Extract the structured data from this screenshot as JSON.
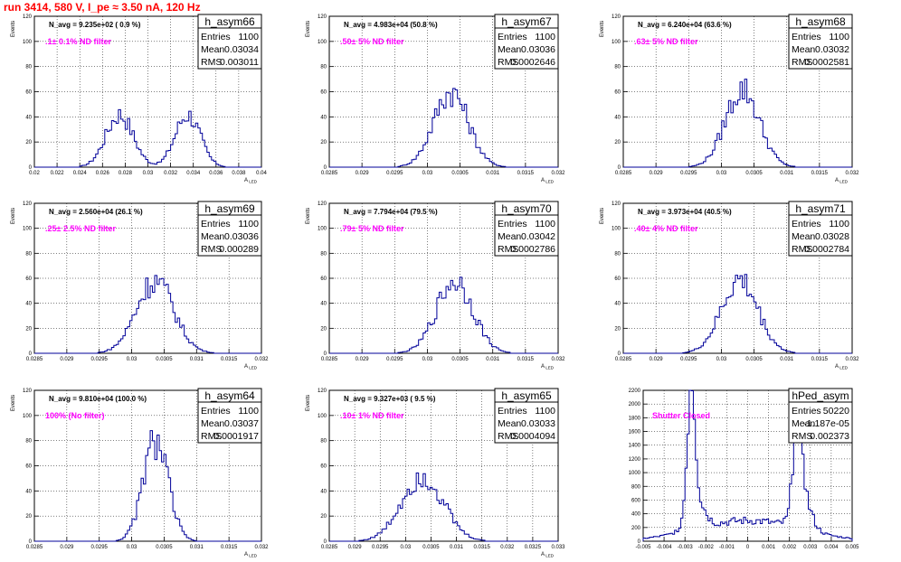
{
  "page_title": "run 3414,   580 V, I_pe ≈ 3.50 nA, 120 Hz",
  "colors": {
    "title": "#ff0000",
    "histogram": "#000099",
    "filter_label": "#ff00ff"
  },
  "chart_data": [
    {
      "type": "histogram",
      "name": "h_asym66",
      "stats": {
        "Entries": "1100",
        "Mean": "0.03034",
        "RMS": "0.003011"
      },
      "n_avg": "N_avg = 9.235e+02 ( 0.9 %)",
      "filter": ".1± 0.1% ND filter",
      "ylabel": "Events",
      "xlabel": "A_LED",
      "xlim": [
        0.02,
        0.04
      ],
      "ylim": [
        0,
        120
      ],
      "grid": true,
      "x_ticks": [
        "0.02",
        "0.022",
        "0.024",
        "0.026",
        "0.028",
        "0.03",
        "0.032",
        "0.034",
        "0.036",
        "0.038",
        "0.04"
      ],
      "y_ticks": [
        "0",
        "20",
        "40",
        "60",
        "80",
        "100",
        "120"
      ],
      "peaks": [
        [
          0.0275,
          0.0012,
          42
        ],
        [
          0.0335,
          0.0011,
          42
        ]
      ]
    },
    {
      "type": "histogram",
      "name": "h_asym67",
      "stats": {
        "Entries": "1100",
        "Mean": "0.03036",
        "RMS": "0.0002646"
      },
      "n_avg": "N_avg = 4.983e+04 (50.8 %)",
      "filter": ".50± 5% ND filter",
      "ylabel": "Events",
      "xlabel": "A_LED",
      "xlim": [
        0.0285,
        0.032
      ],
      "ylim": [
        0,
        120
      ],
      "grid": true,
      "x_ticks": [
        "0.0285",
        "0.029",
        "0.0295",
        "0.03",
        "0.0305",
        "0.031",
        "0.0315",
        "0.032"
      ],
      "y_ticks": [
        "0",
        "20",
        "40",
        "60",
        "80",
        "100",
        "120"
      ],
      "peaks": [
        [
          0.03036,
          0.000265,
          60
        ]
      ]
    },
    {
      "type": "histogram",
      "name": "h_asym68",
      "stats": {
        "Entries": "1100",
        "Mean": "0.03032",
        "RMS": "0.0002581"
      },
      "n_avg": "N_avg = 6.240e+04 (63.6 %)",
      "filter": ".63± 5% ND filter",
      "ylabel": "Events",
      "xlabel": "A_LED",
      "xlim": [
        0.0285,
        0.032
      ],
      "ylim": [
        0,
        120
      ],
      "grid": true,
      "x_ticks": [
        "0.0285",
        "0.029",
        "0.0295",
        "0.03",
        "0.0305",
        "0.031",
        "0.0315",
        "0.032"
      ],
      "y_ticks": [
        "0",
        "20",
        "40",
        "60",
        "80",
        "100",
        "120"
      ],
      "peaks": [
        [
          0.03032,
          0.000258,
          62
        ]
      ]
    },
    {
      "type": "histogram",
      "name": "h_asym69",
      "stats": {
        "Entries": "1100",
        "Mean": "0.03036",
        "RMS": "0.000289"
      },
      "n_avg": "N_avg = 2.560e+04 (26.1 %)",
      "filter": ".25± 2.5% ND filter",
      "ylabel": "Events",
      "xlabel": "A_LED",
      "xlim": [
        0.0285,
        0.032
      ],
      "ylim": [
        0,
        120
      ],
      "grid": true,
      "x_ticks": [
        "0.0285",
        "0.029",
        "0.0295",
        "0.03",
        "0.0305",
        "0.031",
        "0.0315",
        "0.032"
      ],
      "y_ticks": [
        "0",
        "20",
        "40",
        "60",
        "80",
        "100",
        "120"
      ],
      "peaks": [
        [
          0.03036,
          0.000289,
          58
        ]
      ]
    },
    {
      "type": "histogram",
      "name": "h_asym70",
      "stats": {
        "Entries": "1100",
        "Mean": "0.03042",
        "RMS": "0.0002786"
      },
      "n_avg": "N_avg = 7.794e+04 (79.5 %)",
      "filter": ".79± 5% ND filter",
      "ylabel": "Events",
      "xlabel": "A_LED",
      "xlim": [
        0.0285,
        0.032
      ],
      "ylim": [
        0,
        120
      ],
      "grid": true,
      "x_ticks": [
        "0.0285",
        "0.029",
        "0.0295",
        "0.03",
        "0.0305",
        "0.031",
        "0.0315",
        "0.032"
      ],
      "y_ticks": [
        "0",
        "20",
        "40",
        "60",
        "80",
        "100",
        "120"
      ],
      "peaks": [
        [
          0.03042,
          0.000279,
          58
        ]
      ]
    },
    {
      "type": "histogram",
      "name": "h_asym71",
      "stats": {
        "Entries": "1100",
        "Mean": "0.03028",
        "RMS": "0.0002784"
      },
      "n_avg": "N_avg = 3.973e+04 (40.5 %)",
      "filter": ".40± 4% ND filter",
      "ylabel": "Events",
      "xlabel": "A_LED",
      "xlim": [
        0.0285,
        0.032
      ],
      "ylim": [
        0,
        120
      ],
      "grid": true,
      "x_ticks": [
        "0.0285",
        "0.029",
        "0.0295",
        "0.03",
        "0.0305",
        "0.031",
        "0.0315",
        "0.032"
      ],
      "y_ticks": [
        "0",
        "20",
        "40",
        "60",
        "80",
        "100",
        "120"
      ],
      "peaks": [
        [
          0.03028,
          0.000278,
          58
        ]
      ]
    },
    {
      "type": "histogram",
      "name": "h_asym64",
      "stats": {
        "Entries": "1100",
        "Mean": "0.03037",
        "RMS": "0.0001917"
      },
      "n_avg": "N_avg = 9.810e+04 (100.0 %)",
      "filter": "100% (No filter)",
      "ylabel": "Events",
      "xlabel": "A_LED",
      "xlim": [
        0.0285,
        0.032
      ],
      "ylim": [
        0,
        120
      ],
      "grid": true,
      "x_ticks": [
        "0.0285",
        "0.029",
        "0.0295",
        "0.03",
        "0.0305",
        "0.031",
        "0.0315",
        "0.032"
      ],
      "y_ticks": [
        "0",
        "20",
        "40",
        "60",
        "80",
        "100",
        "120"
      ],
      "peaks": [
        [
          0.03037,
          0.000192,
          80
        ]
      ]
    },
    {
      "type": "histogram",
      "name": "h_asym65",
      "stats": {
        "Entries": "1100",
        "Mean": "0.03033",
        "RMS": "0.0004094"
      },
      "n_avg": "N_avg = 9.327e+03 ( 9.5 %)",
      "filter": ".10± 1% ND filter",
      "ylabel": "Events",
      "xlabel": "A_LED",
      "xlim": [
        0.0285,
        0.033
      ],
      "ylim": [
        0,
        120
      ],
      "grid": true,
      "x_ticks": [
        "0.0285",
        "0.029",
        "0.0295",
        "0.03",
        "0.0305",
        "0.031",
        "0.0315",
        "0.032",
        "0.0325",
        "0.033"
      ],
      "y_ticks": [
        "0",
        "20",
        "40",
        "60",
        "80",
        "100",
        "120"
      ],
      "peaks": [
        [
          0.03033,
          0.000409,
          52
        ]
      ]
    },
    {
      "type": "histogram",
      "name": "hPed_asym",
      "stats": {
        "Entries": "50220",
        "Mean": "-1.187e-05",
        "RMS": "0.002373"
      },
      "n_avg": "",
      "filter": "Shutter Closed",
      "ylabel": "",
      "xlabel": "",
      "xlim": [
        -0.005,
        0.005
      ],
      "ylim": [
        0,
        2200
      ],
      "grid": true,
      "x_ticks": [
        "-0.005",
        "-0.004",
        "-0.003",
        "-0.002",
        "-0.001",
        "0",
        "0.001",
        "0.002",
        "0.003",
        "0.004",
        "0.005"
      ],
      "y_ticks": [
        "0",
        "200",
        "400",
        "600",
        "800",
        "1000",
        "1200",
        "1400",
        "1600",
        "1800",
        "2000",
        "2200"
      ],
      "peaks": [
        [
          -0.0027,
          0.00018,
          1900
        ],
        [
          0.0024,
          0.00018,
          1900
        ],
        [
          -0.0025,
          0.0004,
          450
        ],
        [
          0.0026,
          0.0004,
          500
        ],
        [
          0.0,
          0.0025,
          300
        ]
      ]
    }
  ]
}
